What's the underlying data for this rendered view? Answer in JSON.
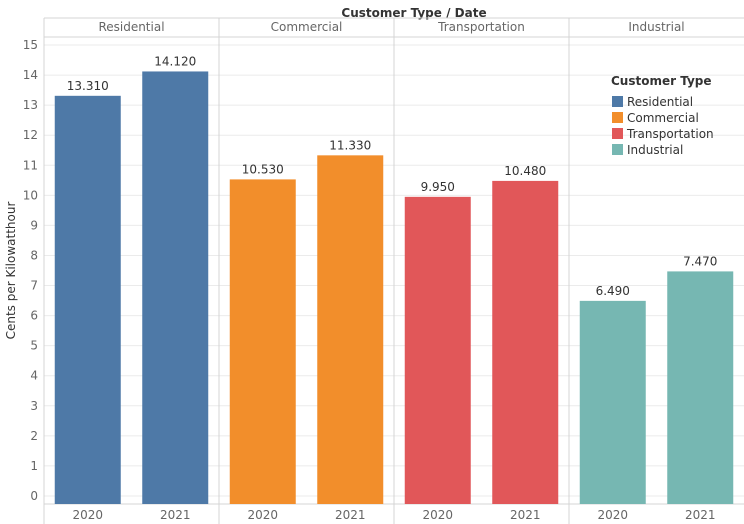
{
  "chart_data": {
    "type": "bar",
    "title": "Customer Type / Date",
    "ylabel": "Cents per Kilowatthour",
    "ylim": [
      0,
      15
    ],
    "yticks": [
      0,
      1,
      2,
      3,
      4,
      5,
      6,
      7,
      8,
      9,
      10,
      11,
      12,
      13,
      14,
      15
    ],
    "grid": true,
    "groups": [
      {
        "name": "Residential",
        "color": "#4e79a7",
        "bars": [
          {
            "x": "2020",
            "value": 13.31,
            "label": "13.310"
          },
          {
            "x": "2021",
            "value": 14.12,
            "label": "14.120"
          }
        ]
      },
      {
        "name": "Commercial",
        "color": "#f28e2b",
        "bars": [
          {
            "x": "2020",
            "value": 10.53,
            "label": "10.530"
          },
          {
            "x": "2021",
            "value": 11.33,
            "label": "11.330"
          }
        ]
      },
      {
        "name": "Transportation",
        "color": "#e15759",
        "bars": [
          {
            "x": "2020",
            "value": 9.95,
            "label": "9.950"
          },
          {
            "x": "2021",
            "value": 10.48,
            "label": "10.480"
          }
        ]
      },
      {
        "name": "Industrial",
        "color": "#76b7b2",
        "bars": [
          {
            "x": "2020",
            "value": 6.49,
            "label": "6.490"
          },
          {
            "x": "2021",
            "value": 7.47,
            "label": "7.470"
          }
        ]
      }
    ],
    "legend": {
      "title": "Customer Type",
      "placement": "top-right",
      "items": [
        {
          "name": "Residential",
          "color": "#4e79a7"
        },
        {
          "name": "Commercial",
          "color": "#f28e2b"
        },
        {
          "name": "Transportation",
          "color": "#e15759"
        },
        {
          "name": "Industrial",
          "color": "#76b7b2"
        }
      ]
    }
  }
}
